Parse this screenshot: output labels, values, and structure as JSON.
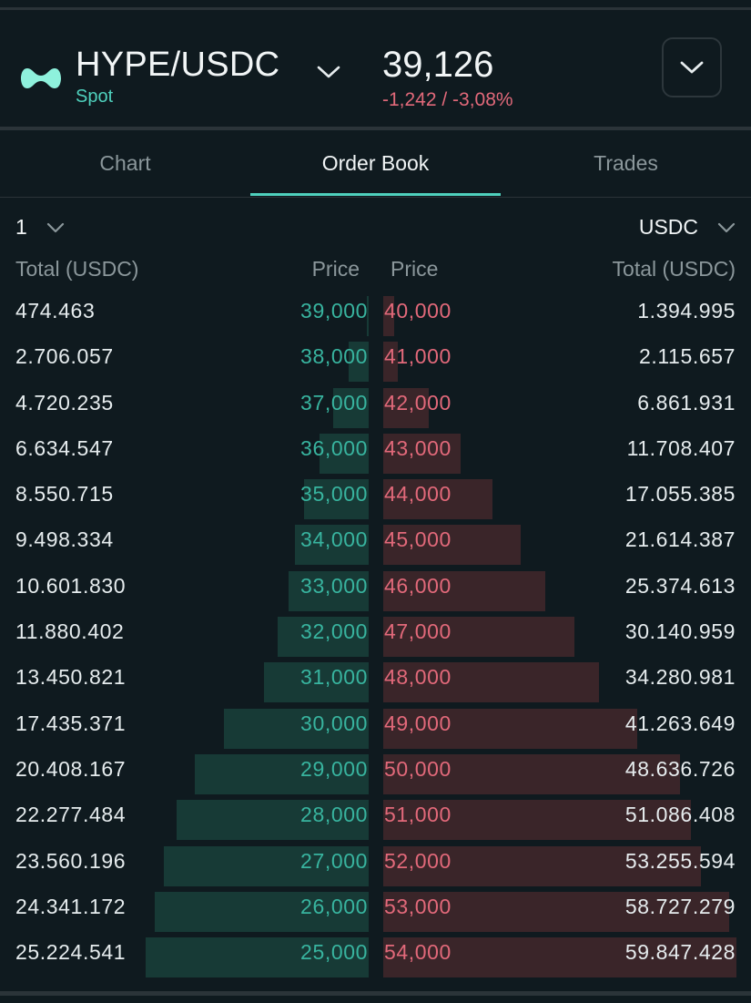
{
  "header": {
    "pair": "HYPE/USDC",
    "market_type": "Spot",
    "last_price": "39,126",
    "price_change": "-1,242 / -3,08%",
    "logo_icon": "hyperliquid-logo",
    "pair_selector_icon": "chevron-down-icon",
    "expand_icon": "chevron-down-icon"
  },
  "tabs": [
    {
      "label": "Chart",
      "active": false
    },
    {
      "label": "Order Book",
      "active": true
    },
    {
      "label": "Trades",
      "active": false
    }
  ],
  "controls": {
    "tick_size": "1",
    "unit": "USDC"
  },
  "columns": {
    "bid_total": "Total (USDC)",
    "bid_price": "Price",
    "ask_price": "Price",
    "ask_total": "Total (USDC)"
  },
  "order_book": {
    "rows": [
      {
        "bid_total": "474.463",
        "bid_price": "39,000",
        "ask_price": "40,000",
        "ask_total": "1.394.995",
        "bid_depth": 0.01,
        "ask_depth": 0.03
      },
      {
        "bid_total": "2.706.057",
        "bid_price": "38,000",
        "ask_price": "41,000",
        "ask_total": "2.115.657",
        "bid_depth": 0.09,
        "ask_depth": 0.04
      },
      {
        "bid_total": "4.720.235",
        "bid_price": "37,000",
        "ask_price": "42,000",
        "ask_total": "6.861.931",
        "bid_depth": 0.16,
        "ask_depth": 0.13
      },
      {
        "bid_total": "6.634.547",
        "bid_price": "36,000",
        "ask_price": "43,000",
        "ask_total": "11.708.407",
        "bid_depth": 0.22,
        "ask_depth": 0.22
      },
      {
        "bid_total": "8.550.715",
        "bid_price": "35,000",
        "ask_price": "44,000",
        "ask_total": "17.055.385",
        "bid_depth": 0.29,
        "ask_depth": 0.31
      },
      {
        "bid_total": "9.498.334",
        "bid_price": "34,000",
        "ask_price": "45,000",
        "ask_total": "21.614.387",
        "bid_depth": 0.33,
        "ask_depth": 0.39
      },
      {
        "bid_total": "10.601.830",
        "bid_price": "33,000",
        "ask_price": "46,000",
        "ask_total": "25.374.613",
        "bid_depth": 0.36,
        "ask_depth": 0.46
      },
      {
        "bid_total": "11.880.402",
        "bid_price": "32,000",
        "ask_price": "47,000",
        "ask_total": "30.140.959",
        "bid_depth": 0.41,
        "ask_depth": 0.54
      },
      {
        "bid_total": "13.450.821",
        "bid_price": "31,000",
        "ask_price": "48,000",
        "ask_total": "34.280.981",
        "bid_depth": 0.47,
        "ask_depth": 0.61
      },
      {
        "bid_total": "17.435.371",
        "bid_price": "30,000",
        "ask_price": "49,000",
        "ask_total": "41.263.649",
        "bid_depth": 0.65,
        "ask_depth": 0.72
      },
      {
        "bid_total": "20.408.167",
        "bid_price": "29,000",
        "ask_price": "50,000",
        "ask_total": "48.636.726",
        "bid_depth": 0.78,
        "ask_depth": 0.84
      },
      {
        "bid_total": "22.277.484",
        "bid_price": "28,000",
        "ask_price": "51,000",
        "ask_total": "51.086.408",
        "bid_depth": 0.86,
        "ask_depth": 0.87
      },
      {
        "bid_total": "23.560.196",
        "bid_price": "27,000",
        "ask_price": "52,000",
        "ask_total": "53.255.594",
        "bid_depth": 0.92,
        "ask_depth": 0.9
      },
      {
        "bid_total": "24.341.172",
        "bid_price": "26,000",
        "ask_price": "53,000",
        "ask_total": "58.727.279",
        "bid_depth": 0.96,
        "ask_depth": 0.98
      },
      {
        "bid_total": "25.224.541",
        "bid_price": "25,000",
        "ask_price": "54,000",
        "ask_total": "59.847.428",
        "bid_depth": 1.0,
        "ask_depth": 1.0
      }
    ]
  },
  "colors": {
    "background": "#0f1a1f",
    "accent": "#4fd1bd",
    "bid": "#38b49f",
    "ask": "#e2697a",
    "bid_bar": "#173a36",
    "ask_bar": "#3a2529"
  }
}
